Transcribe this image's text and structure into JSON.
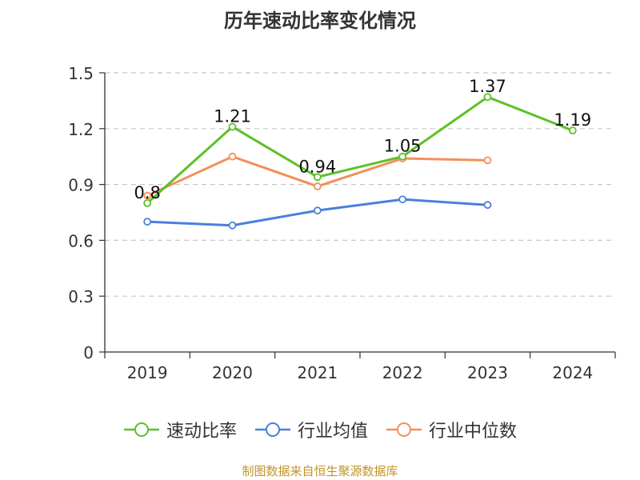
{
  "chart_data": {
    "type": "line",
    "title": "历年速动比率变化情况",
    "categories": [
      "2019",
      "2020",
      "2021",
      "2022",
      "2023",
      "2024"
    ],
    "yticks": [
      "0",
      "0.3",
      "0.6",
      "0.9",
      "1.2",
      "1.5"
    ],
    "ylim": [
      0,
      1.5
    ],
    "grid": true,
    "legend_position": "bottom",
    "series": [
      {
        "name": "速动比率",
        "color": "#5cc127",
        "values": [
          0.8,
          1.21,
          0.94,
          1.05,
          1.37,
          1.19
        ],
        "labels": [
          "0.8",
          "1.21",
          "0.94",
          "1.05",
          "1.37",
          "1.19"
        ]
      },
      {
        "name": "行业均值",
        "color": "#4a7fdc",
        "values": [
          0.7,
          0.68,
          0.76,
          0.82,
          0.79,
          null
        ]
      },
      {
        "name": "行业中位数",
        "color": "#f38f5a",
        "values": [
          0.84,
          1.05,
          0.89,
          1.04,
          1.03,
          null
        ]
      }
    ]
  },
  "source": "制图数据来自恒生聚源数据库",
  "source_color": "#c0932b"
}
